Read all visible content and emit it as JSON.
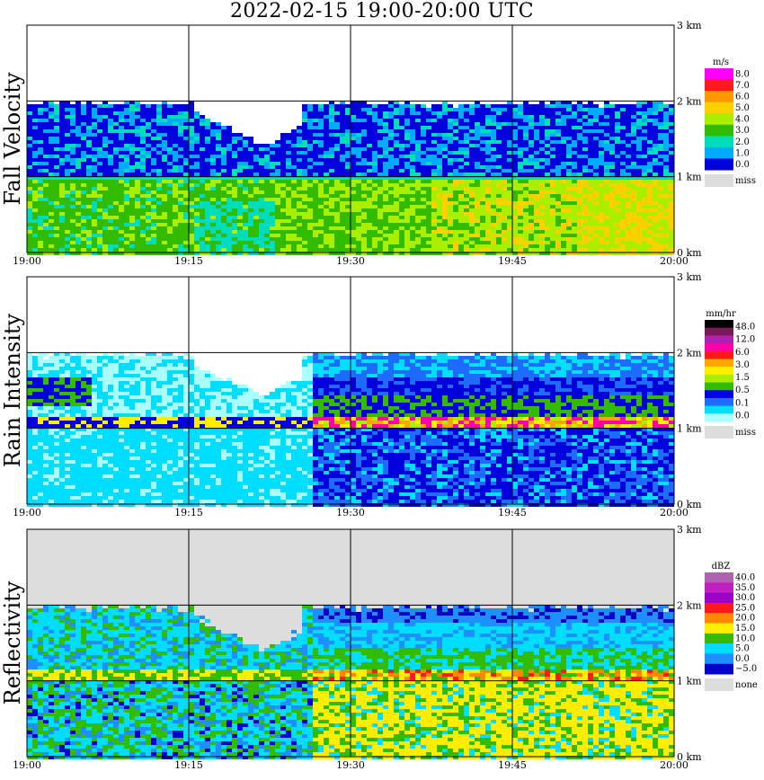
{
  "title": "2022-02-15  19:00-20:00 UTC",
  "x_tick_labels": [
    "19:00",
    "19:15",
    "19:30",
    "19:45",
    "20:00"
  ],
  "height_tick_labels": [
    "0 km",
    "1 km",
    "2 km",
    "3 km"
  ],
  "chart_data": [
    {
      "type": "heatmap",
      "panel": "fall_velocity",
      "ylabel": "Fall Velocity",
      "unit": "m/s",
      "x_range": [
        "19:00",
        "20:00"
      ],
      "y_range_km": [
        0,
        3
      ],
      "grid": true,
      "colorbar": {
        "labels": [
          "8.0",
          "7.0",
          "6.0",
          "5.0",
          "4.0",
          "3.0",
          "2.0",
          "1.0",
          "0.0"
        ],
        "colors": [
          "#ff00ff",
          "#ff1a1a",
          "#ff9900",
          "#ffd000",
          "#aaee00",
          "#33bb00",
          "#00ddbb",
          "#00aaff",
          "#0000dd"
        ],
        "missing_label": "miss",
        "missing_color": "#dddddd"
      },
      "layers": [
        {
          "range_km": [
            1.05,
            2.0
          ],
          "value": "0.0-2.0 m/s"
        },
        {
          "range_km": [
            0.0,
            1.0
          ],
          "value": "3.0-6.0 m/s"
        }
      ]
    },
    {
      "type": "heatmap",
      "panel": "rain_intensity",
      "ylabel": "Rain Intensity",
      "unit": "mm/hr",
      "x_range": [
        "19:00",
        "20:00"
      ],
      "y_range_km": [
        0,
        3
      ],
      "grid": true,
      "colorbar": {
        "labels": [
          "48.0",
          "12.0",
          "6.0",
          "3.0",
          "1.5",
          "0.5",
          "0.1",
          "0.0"
        ],
        "colors": [
          "#000000",
          "#7a1a5a",
          "#b020b0",
          "#ff00aa",
          "#ff1a1a",
          "#ffa500",
          "#ffee00",
          "#aaee00",
          "#33bb00",
          "#0000dd",
          "#1e6bff",
          "#00ddff",
          "#aaffff"
        ],
        "missing_label": "miss",
        "missing_color": "#dddddd"
      },
      "layers": [
        {
          "range_km": [
            1.0,
            1.2
          ],
          "value": "bright band 3.0-12.0 mm/hr"
        },
        {
          "range_km": [
            0.0,
            1.0
          ],
          "value": "0.1-1.5 mm/hr"
        }
      ]
    },
    {
      "type": "heatmap",
      "panel": "reflectivity",
      "ylabel": "Reflectivity",
      "unit": "dBZ",
      "x_range": [
        "19:00",
        "20:00"
      ],
      "y_range_km": [
        0,
        3
      ],
      "grid": true,
      "colorbar": {
        "labels": [
          "40.0",
          "35.0",
          "30.0",
          "25.0",
          "20.0",
          "15.0",
          "10.0",
          "5.0",
          "0.0",
          "−5.0"
        ],
        "colors": [
          "#b060b0",
          "#c020c0",
          "#9900cc",
          "#ff1a1a",
          "#ff8800",
          "#ffee00",
          "#33bb00",
          "#00ddff",
          "#1e8fff",
          "#0000cc"
        ],
        "missing_label": "none",
        "missing_color": "#dddddd"
      },
      "layers": [
        {
          "range_km": [
            1.0,
            1.2
          ],
          "value": "20.0-30.0 dBZ"
        },
        {
          "range_km": [
            0.0,
            1.0
          ],
          "value": "5.0-20.0 dBZ"
        }
      ]
    }
  ]
}
